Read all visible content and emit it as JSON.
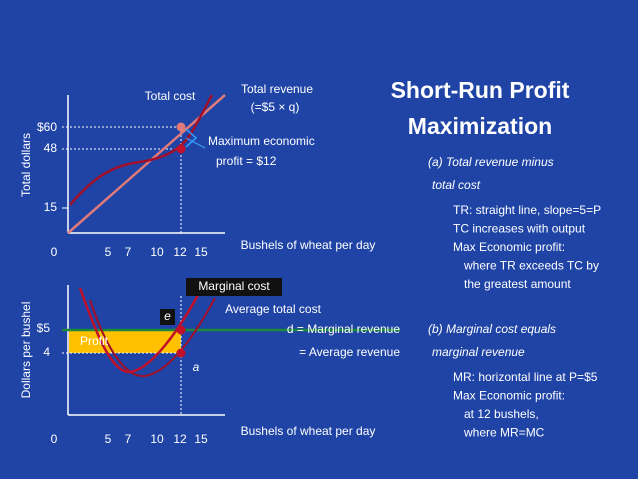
{
  "title": [
    "Short-Run Profit",
    "Maximization"
  ],
  "top_graph": {
    "y_label": "Total dollars",
    "y_ticks": [
      "$60",
      "48",
      "15"
    ],
    "origin": "0",
    "x_ticks": [
      "5",
      "7",
      "10",
      "12",
      "15"
    ],
    "x_label": "Bushels of wheat per day",
    "total_cost": "Total cost",
    "total_revenue": [
      "Total revenue",
      "(=$5 × q)"
    ],
    "max_profit": [
      "Maximum economic",
      "profit = $12"
    ]
  },
  "bottom_graph": {
    "y_label": "Dollars per bushel",
    "y_ticks": [
      "$5",
      "4"
    ],
    "origin": "0",
    "x_ticks": [
      "5",
      "7",
      "10",
      "12",
      "15"
    ],
    "x_label": "Bushels of wheat per day",
    "marginal_cost": "Marginal cost",
    "average_total_cost": "Average total cost",
    "point_e": "e",
    "point_a": "a",
    "profit": "Profit",
    "demand": [
      "d = Marginal revenue",
      "= Average revenue"
    ]
  },
  "notes": [
    {
      "heading": [
        "(a) Total revenue minus",
        "total cost"
      ],
      "lines": [
        "TR: straight line, slope=5=P",
        "TC increases with output",
        "Max Economic profit:",
        "where TR exceeds TC by",
        "the greatest amount"
      ]
    },
    {
      "heading": [
        "(b) Marginal cost equals",
        "marginal revenue"
      ],
      "lines": [
        "MR: horizontal line at P=$5",
        "Max Economic profit:",
        "at 12 bushels,",
        "where MR=MC"
      ]
    }
  ]
}
